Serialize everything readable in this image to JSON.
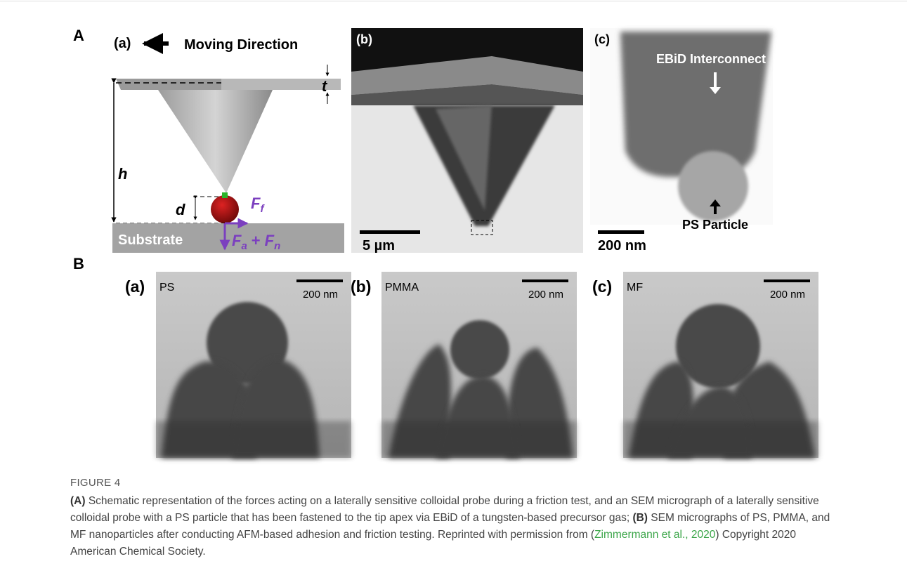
{
  "figure": {
    "panel_a": {
      "label": "A",
      "schematic": {
        "label": "(a)",
        "moving_direction": "Moving Direction",
        "thickness": "t",
        "height": "h",
        "distance": "d",
        "friction_force": {
          "symbol": "F",
          "subscript": "f"
        },
        "normal_forces": {
          "first": {
            "symbol": "F",
            "subscript": "a"
          },
          "operator": "+",
          "second": {
            "symbol": "F",
            "subscript": "n"
          }
        },
        "substrate": "Substrate"
      },
      "micrograph": {
        "label": "(b)",
        "scale": "5 µm"
      },
      "closeup": {
        "label": "(c)",
        "interconnect": "EBiD Interconnect",
        "particle": "PS Particle",
        "scale": "200 nm"
      }
    },
    "panel_b": {
      "label": "B",
      "images": [
        {
          "label": "(a)",
          "material": "PS",
          "scale": "200 nm"
        },
        {
          "label": "(b)",
          "material": "PMMA",
          "scale": "200 nm"
        },
        {
          "label": "(c)",
          "material": "MF",
          "scale": "200 nm"
        }
      ]
    }
  },
  "caption": {
    "figure_label": "FIGURE 4",
    "label_a": "(A)",
    "text_a": " Schematic representation of the forces acting on a laterally sensitive colloidal probe during a friction test, and an SEM micrograph of a laterally sensitive colloidal probe with a PS particle that has been fastened to the tip apex via EBiD of a tungsten-based precursor gas; ",
    "label_b": "(B)",
    "text_b": " SEM micrographs of PS, PMMA, and MF nanoparticles after conducting AFM-based adhesion and friction testing. Reprinted with permission from (",
    "citation": "Zimmermann et al., 2020",
    "text_after": ") Copyright 2020 American Chemical Society."
  }
}
